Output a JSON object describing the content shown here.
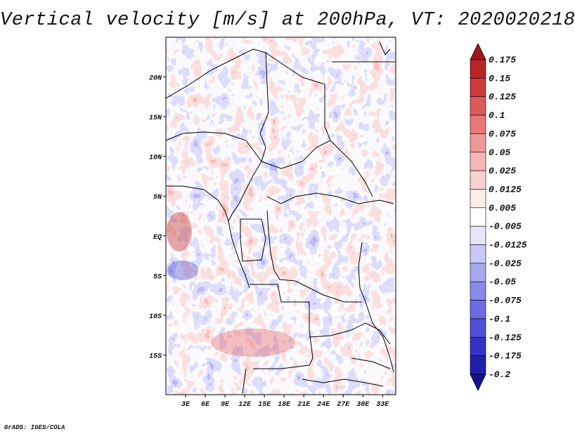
{
  "title": "Vertical velocity [m/s] at 200hPa, VT: 2020020218",
  "credit": "GrADS: IGES/COLA",
  "map": {
    "lat_range": [
      -20,
      25
    ],
    "lon_range": [
      0,
      35
    ],
    "lat_ticks": [
      {
        "value": 20,
        "label": "20N"
      },
      {
        "value": 15,
        "label": "15N"
      },
      {
        "value": 10,
        "label": "10N"
      },
      {
        "value": 5,
        "label": "5N"
      },
      {
        "value": 0,
        "label": "EQ"
      },
      {
        "value": -5,
        "label": "5S"
      },
      {
        "value": -10,
        "label": "10S"
      },
      {
        "value": -15,
        "label": "15S"
      }
    ],
    "lon_ticks": [
      {
        "value": 3,
        "label": "3E"
      },
      {
        "value": 6,
        "label": "6E"
      },
      {
        "value": 9,
        "label": "9E"
      },
      {
        "value": 12,
        "label": "12E"
      },
      {
        "value": 15,
        "label": "15E"
      },
      {
        "value": 18,
        "label": "18E"
      },
      {
        "value": 21,
        "label": "21E"
      },
      {
        "value": 24,
        "label": "24E"
      },
      {
        "value": 27,
        "label": "27E"
      },
      {
        "value": 30,
        "label": "30E"
      },
      {
        "value": 33,
        "label": "33E"
      }
    ],
    "field_colors": {
      "strong_down": "#3a36c8",
      "down": "#7f7ef0",
      "weak_down": "#b9b9f7",
      "neutral": "#f4f1fb",
      "weak_up": "#f7bcbc",
      "up": "#ee8282",
      "strong_up": "#c02a2a"
    }
  },
  "colorbar": {
    "labels": [
      "0.175",
      "0.15",
      "0.125",
      "0.1",
      "0.075",
      "0.05",
      "0.025",
      "0.0125",
      "0.005",
      "-0.005",
      "-0.0125",
      "-0.025",
      "-0.05",
      "-0.075",
      "-0.1",
      "-0.125",
      "-0.175",
      "-0.2"
    ],
    "colors": [
      "#a01818",
      "#b82424",
      "#cc3a3a",
      "#dc5a5a",
      "#e87878",
      "#f09898",
      "#f6b6b6",
      "#fad0d0",
      "#fdecec",
      "#ffffff",
      "#e6e6fb",
      "#c8c8f6",
      "#a8a8f0",
      "#8a8aea",
      "#6c6ce2",
      "#4e4ed8",
      "#3232c6",
      "#2020a8",
      "#14148e"
    ]
  }
}
